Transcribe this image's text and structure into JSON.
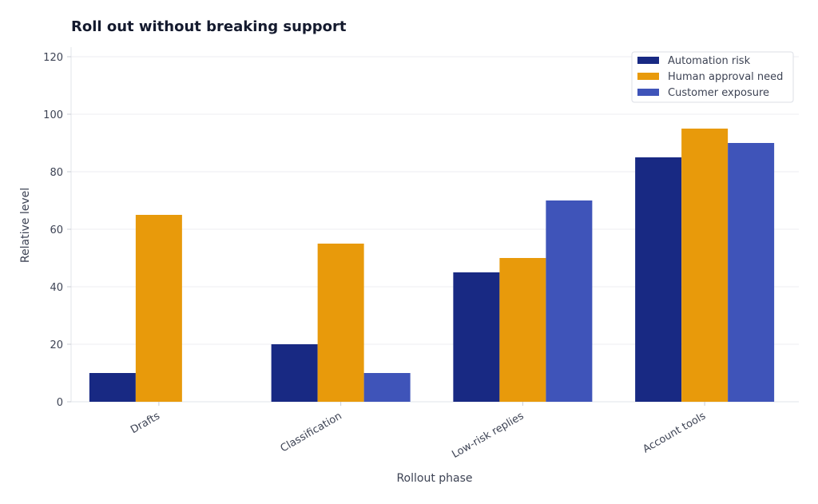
{
  "chart_data": {
    "type": "bar",
    "title": "Roll out without breaking support",
    "xlabel": "Rollout phase",
    "ylabel": "Relative level",
    "categories": [
      "Drafts",
      "Classification",
      "Low-risk replies",
      "Account tools"
    ],
    "series": [
      {
        "name": "Automation risk",
        "values": [
          10,
          20,
          45,
          85
        ],
        "color": "#182983"
      },
      {
        "name": "Human approval need",
        "values": [
          65,
          55,
          50,
          95
        ],
        "color": "#e89a0b"
      },
      {
        "name": "Customer exposure",
        "values": [
          0,
          10,
          70,
          90
        ],
        "color": "#3f54b9"
      }
    ],
    "ylim": [
      0,
      120
    ],
    "yticks": [
      "0",
      "20",
      "40",
      "60",
      "80",
      "100",
      "120"
    ],
    "grid": true,
    "legend_position": "top-right"
  }
}
